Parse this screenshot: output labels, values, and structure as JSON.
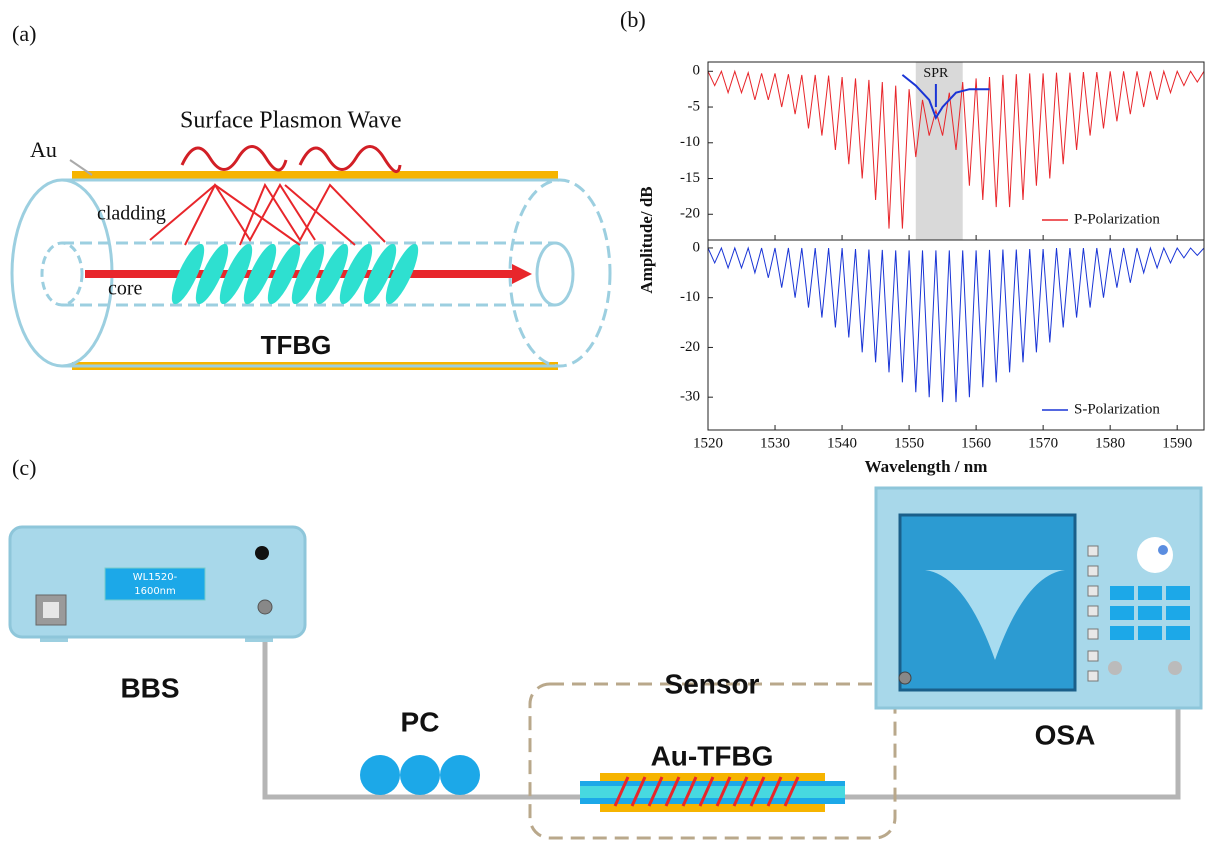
{
  "panels": {
    "a": "(a)",
    "b": "(b)",
    "c": "(c)"
  },
  "diagram_a": {
    "au": "Au",
    "wave": "Surface Plasmon Wave",
    "cladding": "cladding",
    "core": "core",
    "tfbg": "TFBG"
  },
  "setup_c": {
    "bbs_display": [
      "WL1520-",
      "1600nm"
    ],
    "bbs": "BBS",
    "pc": "PC",
    "sensor": "Sensor",
    "au_tfbg": "Au-TFBG",
    "osa": "OSA"
  },
  "chart_data": [
    {
      "type": "line",
      "ylabel": "Amplitude/ dB",
      "x": [
        1520,
        1521,
        1522,
        1523,
        1524,
        1525,
        1526,
        1527,
        1528,
        1529,
        1530,
        1531,
        1532,
        1533,
        1534,
        1535,
        1536,
        1537,
        1538,
        1539,
        1540,
        1541,
        1542,
        1543,
        1544,
        1545,
        1546,
        1547,
        1548,
        1549,
        1550,
        1551,
        1552,
        1553,
        1554,
        1555,
        1556,
        1557,
        1558,
        1559,
        1560,
        1561,
        1562,
        1563,
        1564,
        1565,
        1566,
        1567,
        1568,
        1569,
        1570,
        1571,
        1572,
        1573,
        1574,
        1575,
        1576,
        1577,
        1578,
        1579,
        1580,
        1581,
        1582,
        1583,
        1584,
        1585,
        1586,
        1587,
        1588,
        1589,
        1590,
        1591,
        1592,
        1593,
        1594
      ],
      "series": [
        {
          "name": "P-Polarization",
          "color": "#e8262b",
          "values": [
            0,
            -2,
            0,
            -3,
            0,
            -3,
            -0.2,
            -4,
            -0.3,
            -4,
            -0.3,
            -5,
            -0.4,
            -6,
            -0.5,
            -8,
            -0.5,
            -9,
            -0.6,
            -11,
            -0.8,
            -13,
            -1,
            -15,
            -1.2,
            -18,
            -1.5,
            -22,
            -2,
            -22,
            -2.5,
            -12,
            -4,
            -9,
            -5.5,
            -9,
            -3,
            -11,
            -1.5,
            -16,
            -1,
            -18,
            -0.8,
            -19,
            -0.5,
            -19,
            -0.4,
            -18,
            -0.3,
            -16,
            -0.3,
            -15,
            -0.2,
            -13,
            -0.2,
            -11,
            -0.1,
            -9,
            -0.1,
            -8,
            0,
            -7,
            0,
            -6,
            0,
            -5,
            0,
            -4,
            0,
            -3,
            0,
            -2,
            0,
            -1.5,
            0
          ]
        }
      ],
      "annotation_curve": {
        "x": [
          1549,
          1551,
          1553,
          1554,
          1555,
          1557,
          1559,
          1562
        ],
        "values": [
          -0.5,
          -2,
          -4,
          -6.5,
          -5,
          -3,
          -2.5,
          -2.5
        ],
        "color": "#1a35d6"
      },
      "highlight": [
        1551,
        1558
      ],
      "annotation": {
        "text": "SPR",
        "x": 1554,
        "y": -5
      },
      "xlim": [
        1520,
        1594
      ],
      "ylim": [
        -23.6,
        1.3
      ],
      "xticks": [
        1520,
        1530,
        1540,
        1550,
        1560,
        1570,
        1580,
        1590
      ],
      "yticks": [
        0,
        -5,
        -10,
        -15,
        -20
      ],
      "legend": "lower right"
    },
    {
      "type": "line",
      "xlabel": "Wavelength / nm",
      "x": [
        1520,
        1521,
        1522,
        1523,
        1524,
        1525,
        1526,
        1527,
        1528,
        1529,
        1530,
        1531,
        1532,
        1533,
        1534,
        1535,
        1536,
        1537,
        1538,
        1539,
        1540,
        1541,
        1542,
        1543,
        1544,
        1545,
        1546,
        1547,
        1548,
        1549,
        1550,
        1551,
        1552,
        1553,
        1554,
        1555,
        1556,
        1557,
        1558,
        1559,
        1560,
        1561,
        1562,
        1563,
        1564,
        1565,
        1566,
        1567,
        1568,
        1569,
        1570,
        1571,
        1572,
        1573,
        1574,
        1575,
        1576,
        1577,
        1578,
        1579,
        1580,
        1581,
        1582,
        1583,
        1584,
        1585,
        1586,
        1587,
        1588,
        1589,
        1590,
        1591,
        1592,
        1593,
        1594
      ],
      "series": [
        {
          "name": "S-Polarization",
          "color": "#1a35d6",
          "values": [
            0,
            -3,
            0,
            -4,
            0,
            -4,
            0,
            -5,
            0,
            -6,
            0,
            -8,
            0,
            -10,
            0,
            -12,
            0,
            -14,
            0,
            -16,
            0,
            -18,
            -0.2,
            -21,
            -0.3,
            -23,
            -0.4,
            -25,
            -0.5,
            -27,
            -0.5,
            -29,
            -0.5,
            -30,
            -0.5,
            -31,
            -0.5,
            -31,
            -0.5,
            -30,
            -0.5,
            -28,
            -0.4,
            -27,
            -0.3,
            -25,
            -0.3,
            -23,
            -0.2,
            -21,
            -0.2,
            -19,
            0,
            -16,
            0,
            -14,
            0,
            -12,
            0,
            -10,
            0,
            -8,
            0,
            -7,
            0,
            -5,
            0,
            -4,
            0,
            -3,
            0,
            -2,
            0,
            -1.5,
            0
          ]
        }
      ],
      "xlim": [
        1520,
        1594
      ],
      "ylim": [
        -36.6,
        1.6
      ],
      "xticks": [
        1520,
        1530,
        1540,
        1550,
        1560,
        1570,
        1580,
        1590
      ],
      "yticks": [
        0,
        -10,
        -20,
        -30
      ],
      "legend": "lower right"
    }
  ]
}
